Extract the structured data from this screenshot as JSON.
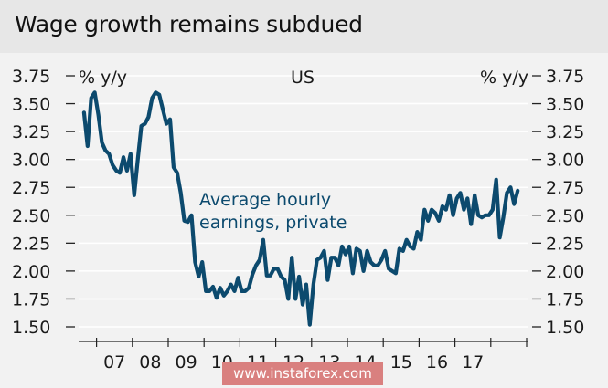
{
  "header": {
    "title": "Wage growth remains subdued"
  },
  "watermark": {
    "text": "www.instaforex.com"
  },
  "colors": {
    "line": "#0c4a6e",
    "header_bg": "#e7e7e7",
    "panel_bg": "#f2f2f2",
    "grid": "#ffffff",
    "watermark_bg": "#d9807f"
  },
  "chart_data": {
    "type": "line",
    "title": "Wage growth remains subdued",
    "region_label": "US",
    "left_unit": "% y/y",
    "right_unit": "% y/y",
    "annotation": [
      "Average hourly",
      "earnings, private"
    ],
    "ylim": [
      1.5,
      3.75
    ],
    "y_ticks": [
      "3.75",
      "3.50",
      "3.25",
      "3.00",
      "2.75",
      "2.50",
      "2.25",
      "2.00",
      "1.75",
      "1.50"
    ],
    "x_ticks": [
      "07",
      "08",
      "09",
      "10",
      "11",
      "12",
      "13",
      "14",
      "15",
      "16",
      "17"
    ],
    "grid": "horizontal",
    "series": [
      {
        "values": [
          [
            2006.65,
            3.42
          ],
          [
            2006.75,
            3.12
          ],
          [
            2006.85,
            3.55
          ],
          [
            2006.95,
            3.6
          ],
          [
            2007.05,
            3.4
          ],
          [
            2007.15,
            3.15
          ],
          [
            2007.25,
            3.08
          ],
          [
            2007.35,
            3.05
          ],
          [
            2007.45,
            2.95
          ],
          [
            2007.55,
            2.9
          ],
          [
            2007.65,
            2.88
          ],
          [
            2007.75,
            3.02
          ],
          [
            2007.85,
            2.9
          ],
          [
            2007.95,
            3.05
          ],
          [
            2008.05,
            2.68
          ],
          [
            2008.15,
            3.0
          ],
          [
            2008.25,
            3.3
          ],
          [
            2008.35,
            3.32
          ],
          [
            2008.45,
            3.38
          ],
          [
            2008.55,
            3.55
          ],
          [
            2008.65,
            3.6
          ],
          [
            2008.75,
            3.58
          ],
          [
            2008.85,
            3.45
          ],
          [
            2008.95,
            3.32
          ],
          [
            2009.05,
            3.36
          ],
          [
            2009.15,
            2.93
          ],
          [
            2009.25,
            2.88
          ],
          [
            2009.35,
            2.7
          ],
          [
            2009.45,
            2.45
          ],
          [
            2009.55,
            2.44
          ],
          [
            2009.65,
            2.5
          ],
          [
            2009.75,
            2.08
          ],
          [
            2009.85,
            1.95
          ],
          [
            2009.95,
            2.08
          ],
          [
            2010.05,
            1.82
          ],
          [
            2010.15,
            1.82
          ],
          [
            2010.25,
            1.86
          ],
          [
            2010.35,
            1.76
          ],
          [
            2010.45,
            1.85
          ],
          [
            2010.55,
            1.78
          ],
          [
            2010.65,
            1.82
          ],
          [
            2010.75,
            1.88
          ],
          [
            2010.85,
            1.82
          ],
          [
            2010.95,
            1.94
          ],
          [
            2011.05,
            1.82
          ],
          [
            2011.15,
            1.82
          ],
          [
            2011.25,
            1.85
          ],
          [
            2011.35,
            1.97
          ],
          [
            2011.45,
            2.05
          ],
          [
            2011.55,
            2.1
          ],
          [
            2011.65,
            2.28
          ],
          [
            2011.75,
            1.96
          ],
          [
            2011.85,
            1.96
          ],
          [
            2011.95,
            2.02
          ],
          [
            2012.05,
            2.02
          ],
          [
            2012.15,
            1.95
          ],
          [
            2012.25,
            1.92
          ],
          [
            2012.35,
            1.75
          ],
          [
            2012.45,
            2.12
          ],
          [
            2012.55,
            1.75
          ],
          [
            2012.65,
            1.95
          ],
          [
            2012.75,
            1.7
          ],
          [
            2012.85,
            1.88
          ],
          [
            2012.95,
            1.52
          ],
          [
            2013.05,
            1.88
          ],
          [
            2013.15,
            2.1
          ],
          [
            2013.25,
            2.12
          ],
          [
            2013.35,
            2.18
          ],
          [
            2013.45,
            1.92
          ],
          [
            2013.55,
            2.12
          ],
          [
            2013.65,
            2.12
          ],
          [
            2013.75,
            2.05
          ],
          [
            2013.85,
            2.22
          ],
          [
            2013.95,
            2.15
          ],
          [
            2014.05,
            2.22
          ],
          [
            2014.15,
            1.98
          ],
          [
            2014.25,
            2.2
          ],
          [
            2014.35,
            2.18
          ],
          [
            2014.45,
            2.0
          ],
          [
            2014.55,
            2.18
          ],
          [
            2014.65,
            2.08
          ],
          [
            2014.75,
            2.05
          ],
          [
            2014.85,
            2.05
          ],
          [
            2014.95,
            2.1
          ],
          [
            2015.05,
            2.18
          ],
          [
            2015.15,
            2.02
          ],
          [
            2015.25,
            2.0
          ],
          [
            2015.35,
            1.98
          ],
          [
            2015.45,
            2.2
          ],
          [
            2015.55,
            2.18
          ],
          [
            2015.65,
            2.28
          ],
          [
            2015.75,
            2.22
          ],
          [
            2015.85,
            2.2
          ],
          [
            2015.95,
            2.35
          ],
          [
            2016.05,
            2.28
          ],
          [
            2016.15,
            2.55
          ],
          [
            2016.25,
            2.45
          ],
          [
            2016.35,
            2.55
          ],
          [
            2016.45,
            2.52
          ],
          [
            2016.55,
            2.45
          ],
          [
            2016.65,
            2.58
          ],
          [
            2016.75,
            2.55
          ],
          [
            2016.85,
            2.68
          ],
          [
            2016.95,
            2.5
          ],
          [
            2017.05,
            2.65
          ],
          [
            2017.15,
            2.7
          ],
          [
            2017.25,
            2.55
          ],
          [
            2017.35,
            2.65
          ],
          [
            2017.45,
            2.42
          ],
          [
            2017.55,
            2.68
          ],
          [
            2017.65,
            2.5
          ],
          [
            2017.75,
            2.48
          ],
          [
            2017.85,
            2.5
          ],
          [
            2017.95,
            2.5
          ],
          [
            2018.05,
            2.55
          ],
          [
            2018.15,
            2.82
          ],
          [
            2018.25,
            2.3
          ],
          [
            2018.35,
            2.48
          ],
          [
            2018.45,
            2.7
          ],
          [
            2018.55,
            2.75
          ],
          [
            2018.65,
            2.6
          ],
          [
            2018.75,
            2.72
          ]
        ]
      }
    ]
  }
}
